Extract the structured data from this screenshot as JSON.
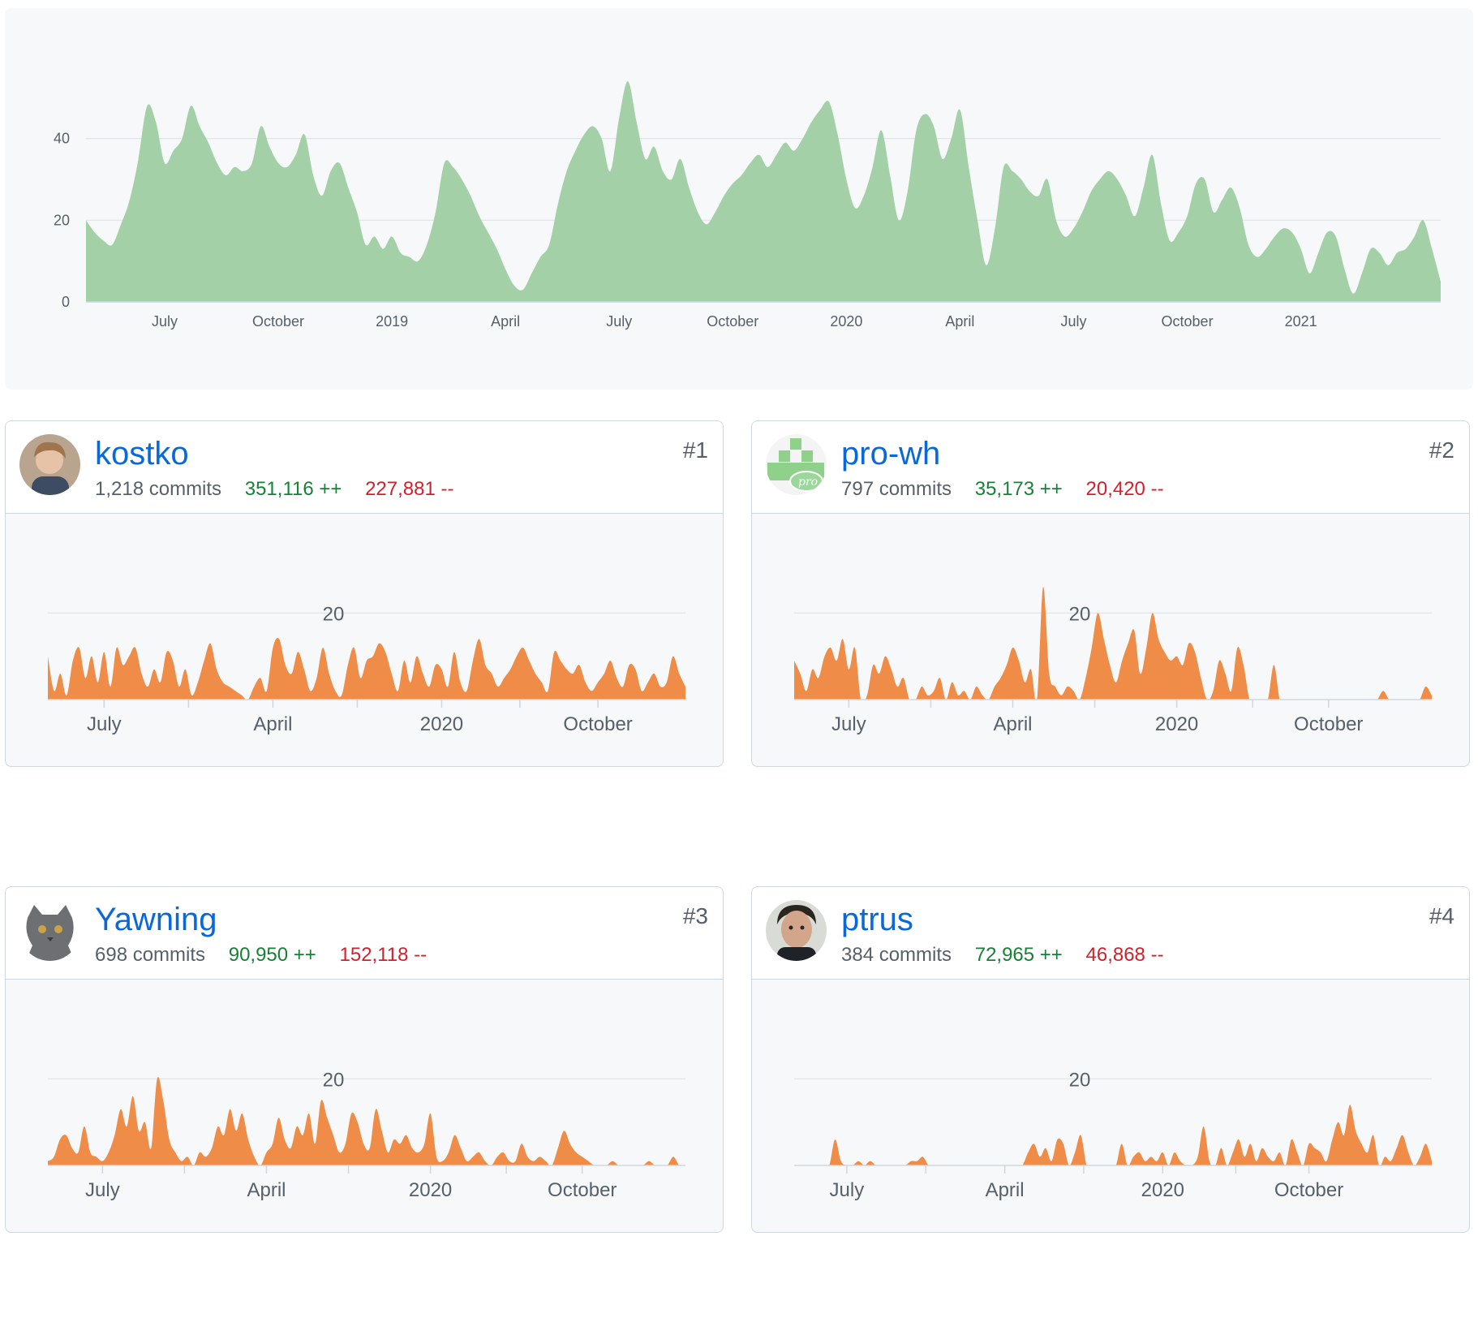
{
  "overview": {
    "chart_data": {
      "type": "area",
      "ylim": [
        0,
        60
      ],
      "yticks": [
        0,
        20,
        40
      ],
      "xlabels": [
        "July",
        "October",
        "2019",
        "April",
        "July",
        "October",
        "2020",
        "April",
        "July",
        "October",
        "2021"
      ],
      "xlabel_positions_week": [
        9,
        22,
        35,
        48,
        61,
        74,
        87,
        100,
        113,
        126,
        139
      ],
      "values": [
        20,
        17,
        15,
        14,
        19,
        25,
        35,
        48,
        44,
        34,
        37,
        40,
        48,
        43,
        39,
        34,
        31,
        33,
        32,
        34,
        43,
        38,
        34,
        33,
        36,
        41,
        31,
        26,
        32,
        34,
        28,
        22,
        14,
        16,
        13,
        16,
        12,
        11,
        10,
        14,
        22,
        34,
        33,
        30,
        26,
        21,
        17,
        13,
        8,
        4,
        3,
        7,
        11,
        14,
        24,
        32,
        37,
        41,
        43,
        40,
        32,
        45,
        54,
        44,
        35,
        38,
        32,
        30,
        35,
        28,
        22,
        19,
        22,
        26,
        29,
        31,
        34,
        36,
        33,
        36,
        39,
        37,
        40,
        44,
        47,
        49,
        41,
        30,
        23,
        26,
        33,
        42,
        31,
        20,
        27,
        42,
        46,
        43,
        35,
        40,
        47,
        33,
        20,
        9,
        18,
        33,
        32,
        30,
        27,
        26,
        30,
        20,
        16,
        18,
        22,
        27,
        30,
        32,
        30,
        26,
        21,
        28,
        36,
        24,
        15,
        17,
        21,
        29,
        30,
        22,
        25,
        28,
        23,
        14,
        11,
        13,
        16,
        18,
        17,
        13,
        7,
        12,
        17,
        16,
        8,
        2,
        7,
        13,
        12,
        9,
        12,
        13,
        16,
        20,
        13,
        5
      ]
    }
  },
  "contributors": [
    {
      "login": "kostko",
      "rank": "#1",
      "commits": "1,218 commits",
      "additions": "351,116 ++",
      "deletions": "227,881 --",
      "chart_data": {
        "type": "area",
        "ylim": [
          0,
          30
        ],
        "yticks": [
          20
        ],
        "xlabels": [
          "July",
          "April",
          "2020",
          "October"
        ],
        "xlabel_positions_week": [
          9,
          36,
          63,
          88
        ],
        "values": [
          10,
          2,
          6,
          1,
          9,
          12,
          5,
          10,
          4,
          11,
          3,
          12,
          8,
          10,
          12,
          6,
          3,
          7,
          4,
          11,
          9,
          3,
          7,
          1,
          4,
          9,
          13,
          7,
          4,
          3,
          2,
          1,
          0,
          3,
          5,
          2,
          12,
          14,
          8,
          6,
          11,
          7,
          2,
          5,
          12,
          6,
          2,
          1,
          8,
          12,
          5,
          9,
          10,
          13,
          11,
          6,
          2,
          9,
          4,
          10,
          6,
          3,
          8,
          7,
          3,
          11,
          4,
          2,
          9,
          14,
          8,
          6,
          3,
          5,
          7,
          10,
          12,
          9,
          6,
          4,
          2,
          11,
          9,
          7,
          6,
          8,
          4,
          2,
          4,
          6,
          9,
          5,
          3,
          8,
          7,
          2,
          4,
          6,
          3,
          4,
          10,
          6,
          3
        ]
      }
    },
    {
      "login": "pro-wh",
      "rank": "#2",
      "commits": "797 commits",
      "additions": "35,173 ++",
      "deletions": "20,420 --",
      "chart_data": {
        "type": "area",
        "ylim": [
          0,
          30
        ],
        "yticks": [
          20
        ],
        "xlabels": [
          "July",
          "April",
          "2020",
          "October"
        ],
        "xlabel_positions_week": [
          9,
          36,
          63,
          88
        ],
        "values": [
          9,
          6,
          2,
          7,
          5,
          10,
          12,
          9,
          14,
          7,
          12,
          0,
          1,
          8,
          6,
          10,
          7,
          3,
          5,
          0,
          0,
          3,
          1,
          2,
          5,
          0,
          4,
          1,
          2,
          0,
          3,
          1,
          0,
          3,
          5,
          8,
          12,
          9,
          4,
          7,
          0,
          26,
          6,
          3,
          1,
          3,
          2,
          0,
          5,
          12,
          20,
          14,
          8,
          4,
          9,
          13,
          16,
          6,
          12,
          20,
          14,
          11,
          9,
          10,
          8,
          13,
          11,
          5,
          0,
          2,
          9,
          6,
          2,
          12,
          8,
          0,
          0,
          0,
          0,
          8,
          0,
          0,
          0,
          0,
          0,
          0,
          0,
          0,
          0,
          0,
          0,
          0,
          0,
          0,
          0,
          0,
          0,
          2,
          0,
          0,
          0,
          0,
          0,
          0,
          3,
          1
        ]
      }
    },
    {
      "login": "Yawning",
      "rank": "#3",
      "commits": "698 commits",
      "additions": "90,950 ++",
      "deletions": "152,118 --",
      "chart_data": {
        "type": "area",
        "ylim": [
          0,
          30
        ],
        "yticks": [
          20
        ],
        "xlabels": [
          "July",
          "April",
          "2020",
          "October"
        ],
        "xlabel_positions_week": [
          9,
          36,
          63,
          88
        ],
        "values": [
          1,
          2,
          6,
          7,
          4,
          3,
          9,
          3,
          2,
          1,
          3,
          7,
          13,
          9,
          16,
          8,
          10,
          4,
          20,
          15,
          6,
          3,
          1,
          2,
          0,
          3,
          2,
          4,
          9,
          7,
          13,
          8,
          12,
          6,
          2,
          0,
          3,
          5,
          11,
          6,
          4,
          9,
          7,
          12,
          5,
          15,
          11,
          7,
          3,
          5,
          12,
          10,
          5,
          4,
          13,
          8,
          3,
          6,
          5,
          7,
          4,
          3,
          5,
          12,
          2,
          1,
          3,
          7,
          4,
          1,
          2,
          3,
          1,
          0,
          2,
          3,
          1,
          1,
          5,
          2,
          1,
          2,
          1,
          0,
          4,
          8,
          5,
          3,
          2,
          1,
          0,
          0,
          0,
          1,
          0,
          0,
          0,
          0,
          0,
          1,
          0,
          0,
          0,
          2,
          0,
          0
        ]
      }
    },
    {
      "login": "ptrus",
      "rank": "#4",
      "commits": "384 commits",
      "additions": "72,965 ++",
      "deletions": "46,868 --",
      "chart_data": {
        "type": "area",
        "ylim": [
          0,
          30
        ],
        "yticks": [
          20
        ],
        "xlabels": [
          "July",
          "April",
          "2020",
          "October"
        ],
        "xlabel_positions_week": [
          9,
          36,
          63,
          88
        ],
        "values": [
          0,
          0,
          0,
          0,
          0,
          0,
          0,
          6,
          1,
          0,
          0,
          1,
          0,
          1,
          0,
          0,
          0,
          0,
          0,
          0,
          1,
          1,
          2,
          0,
          0,
          0,
          0,
          0,
          0,
          0,
          0,
          0,
          0,
          0,
          0,
          0,
          0,
          0,
          0,
          0,
          3,
          5,
          2,
          4,
          1,
          6,
          5,
          0,
          3,
          7,
          0,
          0,
          0,
          0,
          0,
          0,
          5,
          0,
          2,
          3,
          1,
          2,
          1,
          3,
          0,
          3,
          1,
          0,
          0,
          2,
          9,
          1,
          0,
          4,
          0,
          3,
          6,
          2,
          5,
          1,
          4,
          2,
          1,
          3,
          0,
          6,
          3,
          0,
          5,
          4,
          3,
          1,
          6,
          10,
          7,
          14,
          8,
          5,
          3,
          7,
          0,
          2,
          1,
          4,
          7,
          3,
          0,
          2,
          5,
          1
        ]
      }
    }
  ]
}
